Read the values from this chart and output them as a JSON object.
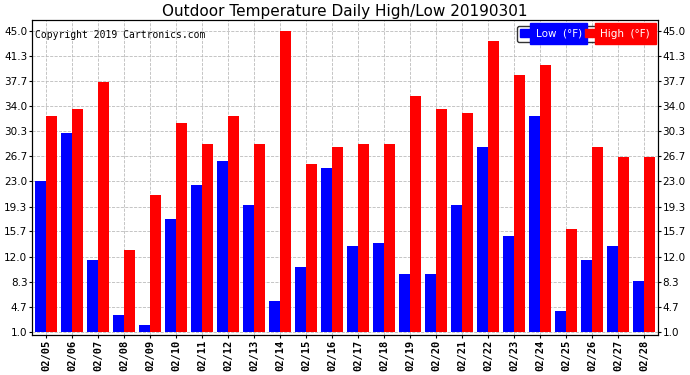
{
  "title": "Outdoor Temperature Daily High/Low 20190301",
  "copyright": "Copyright 2019 Cartronics.com",
  "dates": [
    "02/05",
    "02/06",
    "02/07",
    "02/08",
    "02/09",
    "02/10",
    "02/11",
    "02/12",
    "02/13",
    "02/14",
    "02/15",
    "02/16",
    "02/17",
    "02/18",
    "02/19",
    "02/20",
    "02/21",
    "02/22",
    "02/23",
    "02/24",
    "02/25",
    "02/26",
    "02/27",
    "02/28"
  ],
  "high": [
    32.5,
    33.5,
    37.5,
    13.0,
    21.0,
    31.5,
    28.5,
    32.5,
    28.5,
    45.0,
    25.5,
    28.0,
    28.5,
    28.5,
    35.5,
    33.5,
    33.0,
    43.5,
    38.5,
    40.0,
    16.0,
    28.0,
    26.5,
    26.5
  ],
  "low": [
    23.0,
    30.0,
    11.5,
    3.5,
    2.0,
    17.5,
    22.5,
    26.0,
    19.5,
    5.5,
    10.5,
    25.0,
    13.5,
    14.0,
    9.5,
    9.5,
    19.5,
    28.0,
    15.0,
    32.5,
    4.0,
    11.5,
    13.5,
    8.5
  ],
  "high_color": "#ff0000",
  "low_color": "#0000ff",
  "bg_color": "#ffffff",
  "grid_color": "#bbbbbb",
  "yticks": [
    1.0,
    4.7,
    8.3,
    12.0,
    15.7,
    19.3,
    23.0,
    26.7,
    30.3,
    34.0,
    37.7,
    41.3,
    45.0
  ],
  "ybase": 1.0,
  "ylim": [
    0.5,
    46.5
  ],
  "title_fontsize": 11,
  "tick_fontsize": 7.5,
  "copyright_fontsize": 7,
  "legend_low_label": "Low  (°F)",
  "legend_high_label": "High  (°F)"
}
